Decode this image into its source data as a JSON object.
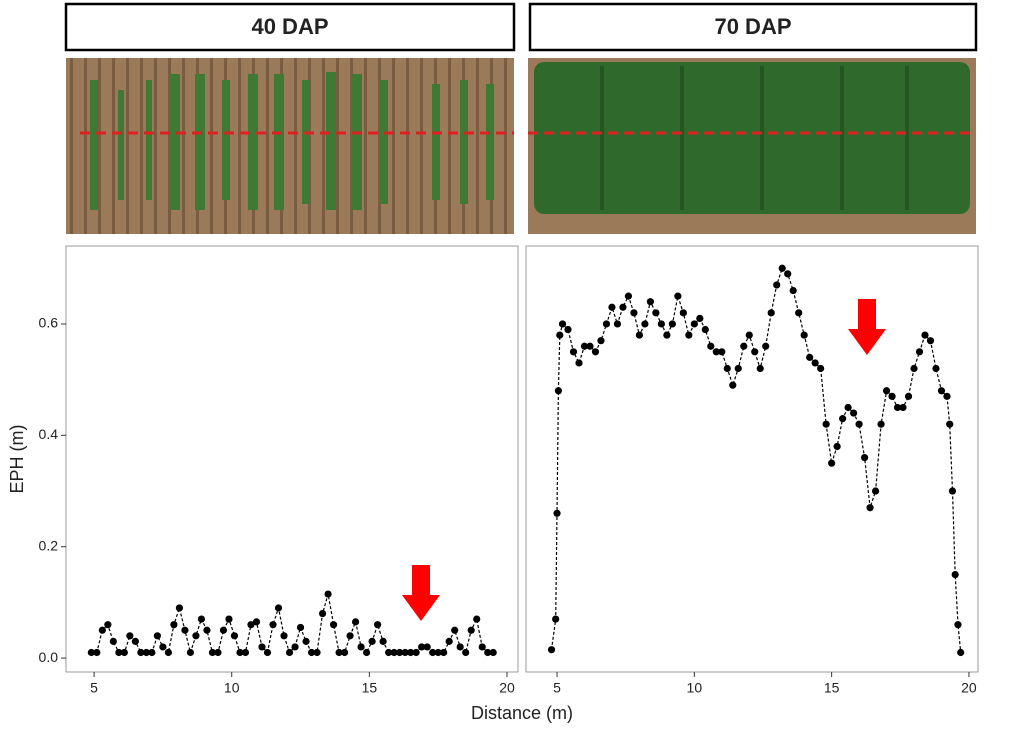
{
  "chart_data": [
    {
      "type": "line",
      "title": "40 DAP",
      "xlabel": "Distance (m)",
      "ylabel": "EPH (m)",
      "color": "#000000",
      "xlim": [
        3.98,
        20.4
      ],
      "xticks": [
        5,
        10,
        15,
        20
      ],
      "ylim": [
        -0.025,
        0.74
      ],
      "yticks": [
        {
          "value": 0,
          "label": "0.0"
        },
        0.2,
        0.4,
        0.6
      ],
      "x": [
        4.9,
        5.1,
        5.3,
        5.5,
        5.7,
        5.9,
        6.1,
        6.3,
        6.5,
        6.7,
        6.9,
        7.1,
        7.3,
        7.5,
        7.7,
        7.9,
        8.1,
        8.3,
        8.5,
        8.7,
        8.9,
        9.1,
        9.3,
        9.5,
        9.7,
        9.9,
        10.1,
        10.3,
        10.5,
        10.7,
        10.9,
        11.1,
        11.3,
        11.5,
        11.7,
        11.9,
        12.1,
        12.3,
        12.5,
        12.7,
        12.9,
        13.1,
        13.3,
        13.5,
        13.7,
        13.9,
        14.1,
        14.3,
        14.5,
        14.7,
        14.9,
        15.1,
        15.3,
        15.5,
        15.7,
        15.9,
        16.1,
        16.3,
        16.5,
        16.7,
        16.9,
        17.1,
        17.3,
        17.5,
        17.7,
        17.9,
        18.1,
        18.3,
        18.5,
        18.7,
        18.9,
        19.1,
        19.3,
        19.5
      ],
      "values": [
        0.01,
        0.01,
        0.05,
        0.06,
        0.03,
        0.01,
        0.01,
        0.04,
        0.03,
        0.01,
        0.01,
        0.01,
        0.04,
        0.02,
        0.01,
        0.06,
        0.09,
        0.05,
        0.01,
        0.04,
        0.07,
        0.05,
        0.01,
        0.01,
        0.05,
        0.07,
        0.04,
        0.01,
        0.01,
        0.06,
        0.065,
        0.02,
        0.01,
        0.06,
        0.09,
        0.04,
        0.01,
        0.02,
        0.055,
        0.03,
        0.01,
        0.01,
        0.08,
        0.115,
        0.06,
        0.01,
        0.01,
        0.04,
        0.065,
        0.02,
        0.01,
        0.03,
        0.06,
        0.03,
        0.01,
        0.01,
        0.01,
        0.01,
        0.01,
        0.01,
        0.02,
        0.02,
        0.01,
        0.01,
        0.01,
        0.03,
        0.05,
        0.02,
        0.01,
        0.05,
        0.07,
        0.02,
        0.01,
        0.01
      ]
    },
    {
      "type": "line",
      "title": "70 DAP",
      "color": "#000000",
      "xlim": [
        3.87,
        20.33
      ],
      "xticks": [
        5,
        10,
        15,
        20
      ],
      "ylim": [
        -0.025,
        0.74
      ],
      "x": [
        4.8,
        4.95,
        5.0,
        5.05,
        5.1,
        5.2,
        5.4,
        5.6,
        5.8,
        6.0,
        6.2,
        6.4,
        6.6,
        6.8,
        7.0,
        7.2,
        7.4,
        7.6,
        7.8,
        8.0,
        8.2,
        8.4,
        8.6,
        8.8,
        9.0,
        9.2,
        9.4,
        9.6,
        9.8,
        10.0,
        10.2,
        10.4,
        10.6,
        10.8,
        11.0,
        11.2,
        11.4,
        11.6,
        11.8,
        12.0,
        12.2,
        12.4,
        12.6,
        12.8,
        13.0,
        13.2,
        13.4,
        13.6,
        13.8,
        14.0,
        14.2,
        14.4,
        14.6,
        14.8,
        15.0,
        15.2,
        15.4,
        15.6,
        15.8,
        16.0,
        16.2,
        16.4,
        16.6,
        16.8,
        17.0,
        17.2,
        17.4,
        17.6,
        17.8,
        18.0,
        18.2,
        18.4,
        18.6,
        18.8,
        19.0,
        19.2,
        19.3,
        19.4,
        19.5,
        19.6,
        19.7
      ],
      "values": [
        0.015,
        0.07,
        0.26,
        0.48,
        0.58,
        0.6,
        0.59,
        0.55,
        0.53,
        0.56,
        0.56,
        0.55,
        0.57,
        0.6,
        0.63,
        0.6,
        0.63,
        0.65,
        0.62,
        0.58,
        0.6,
        0.64,
        0.62,
        0.6,
        0.58,
        0.6,
        0.65,
        0.62,
        0.58,
        0.6,
        0.61,
        0.59,
        0.56,
        0.55,
        0.55,
        0.52,
        0.49,
        0.52,
        0.56,
        0.58,
        0.55,
        0.52,
        0.56,
        0.62,
        0.67,
        0.7,
        0.69,
        0.66,
        0.62,
        0.58,
        0.54,
        0.53,
        0.52,
        0.42,
        0.35,
        0.38,
        0.43,
        0.45,
        0.44,
        0.42,
        0.36,
        0.27,
        0.3,
        0.42,
        0.48,
        0.47,
        0.45,
        0.45,
        0.47,
        0.52,
        0.55,
        0.58,
        0.57,
        0.52,
        0.48,
        0.47,
        0.42,
        0.3,
        0.15,
        0.06,
        0.01
      ]
    }
  ]
}
